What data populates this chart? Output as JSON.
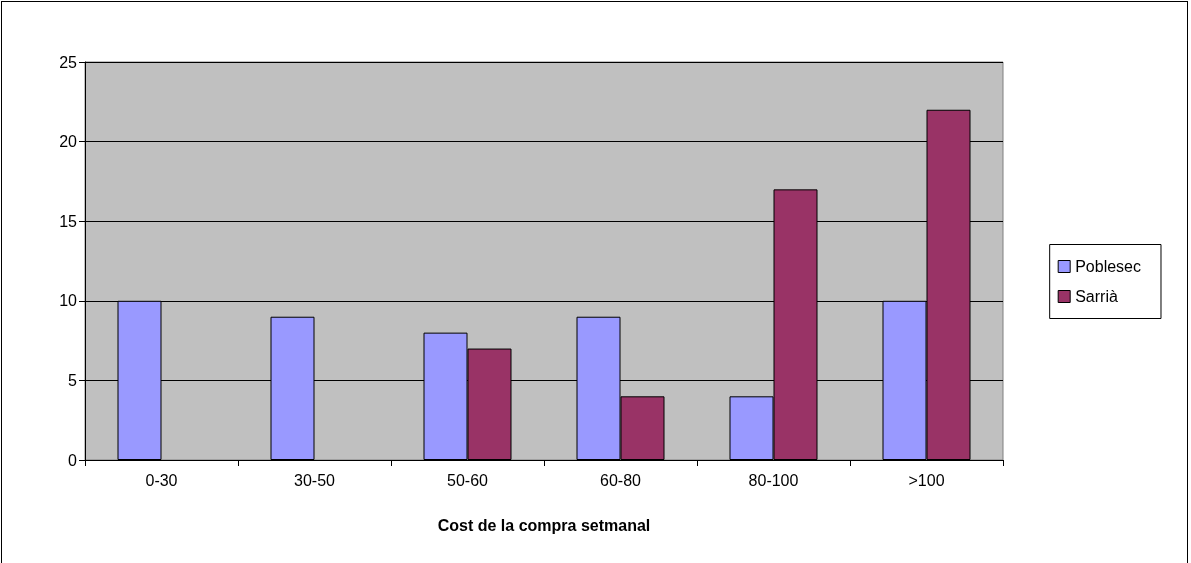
{
  "chart_data": {
    "type": "bar",
    "xlabel": "Cost de la compra setmanal",
    "categories": [
      "0-30",
      "30-50",
      "50-60",
      "60-80",
      "80-100",
      ">100"
    ],
    "series": [
      {
        "name": "Poblesec",
        "color": "#9999ff",
        "values": [
          10,
          9,
          8,
          9,
          4,
          10
        ]
      },
      {
        "name": "Sarrià",
        "color": "#993366",
        "values": [
          null,
          null,
          7,
          4,
          17,
          22
        ]
      }
    ],
    "ylim": [
      0,
      25
    ],
    "yticks": [
      0,
      5,
      10,
      15,
      20,
      25
    ],
    "grid": "y",
    "legend": "right"
  }
}
